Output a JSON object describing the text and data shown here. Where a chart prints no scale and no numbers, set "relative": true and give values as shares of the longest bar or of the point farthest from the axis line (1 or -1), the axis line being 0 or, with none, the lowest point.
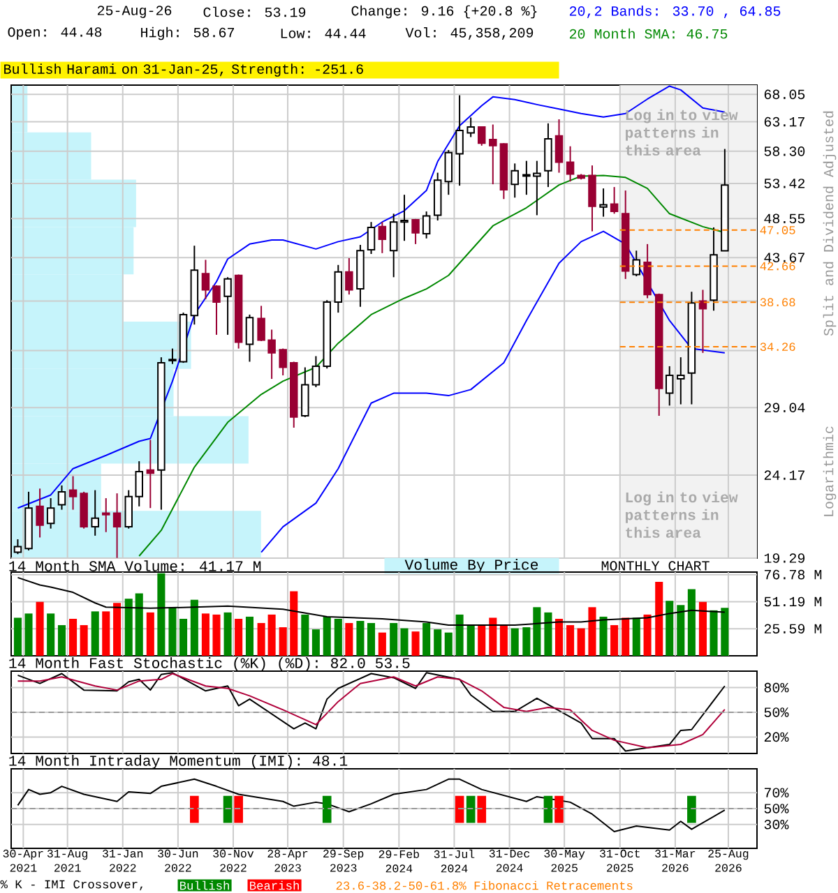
{
  "chart_data": [
    {
      "type": "candlestick",
      "subtitle": "Bullish Harami on 31-Jan-25, Strength: -251.6",
      "ylabel": "Split and Dividend Adjusted",
      "annotations": [
        "25-Aug-26",
        "Close: 53.19",
        "Change: 9.16 {+20.8 %}",
        "Open: 44.48",
        "High: 58.67",
        "Low: 44.44",
        "Vol: 45,358,209",
        "Log in to view patterns in this area",
        "Log in to view patterns in this area",
        "MONTHLY CHART",
        "Logarithmic",
        "Volume By Price"
      ],
      "x": [
        "2021-04-15",
        "2021-05-15",
        "2021-06-15",
        "2021-07-15",
        "2021-08-15",
        "2021-09-15",
        "2021-10-15",
        "2021-11-15",
        "2021-12-15",
        "2022-01-15",
        "2022-02-15",
        "2022-03-15",
        "2022-04-15",
        "2022-05-15",
        "2022-06-15",
        "2022-07-15",
        "2022-08-15",
        "2022-09-15",
        "2022-10-15",
        "2022-11-15",
        "2022-12-15",
        "2023-01-15",
        "2023-02-15",
        "2023-03-15",
        "2023-04-15",
        "2023-05-15",
        "2023-06-15",
        "2023-07-15",
        "2023-08-15",
        "2023-09-15",
        "2023-10-15",
        "2023-11-15",
        "2023-12-15",
        "2024-01-15",
        "2024-02-15",
        "2024-03-15",
        "2024-04-15",
        "2024-05-15",
        "2024-06-15",
        "2024-07-15",
        "2024-08-15",
        "2024-09-15",
        "2024-10-15",
        "2024-11-15",
        "2024-12-15",
        "2025-01-15",
        "2025-02-15",
        "2025-03-15",
        "2025-04-15",
        "2025-05-15",
        "2025-06-15",
        "2025-07-15",
        "2025-08-15",
        "2025-09-15",
        "2025-10-15",
        "2025-11-15",
        "2025-12-15",
        "2026-01-15",
        "2026-02-15",
        "2026-03-15",
        "2026-04-15",
        "2026-05-15",
        "2026-06-15",
        "2026-07-15",
        "2026-08-15"
      ],
      "ohlc": [
        [
          19.6,
          20.3,
          19.5,
          19.9
        ],
        [
          19.8,
          23.1,
          19.7,
          22.1
        ],
        [
          22.2,
          23.3,
          20.4,
          21.1
        ],
        [
          21.2,
          22.7,
          20.9,
          22.1
        ],
        [
          22.3,
          23.5,
          22.0,
          23.1
        ],
        [
          23.2,
          24.1,
          22.0,
          22.8
        ],
        [
          23.0,
          23.1,
          20.9,
          21.0
        ],
        [
          21.0,
          23.2,
          20.5,
          21.5
        ],
        [
          21.8,
          22.7,
          20.7,
          21.7
        ],
        [
          21.8,
          23.0,
          19.3,
          21.0
        ],
        [
          21.0,
          23.2,
          20.9,
          22.8
        ],
        [
          22.8,
          25.1,
          22.2,
          24.4
        ],
        [
          24.5,
          26.6,
          22.1,
          24.3
        ],
        [
          24.5,
          33.3,
          22.0,
          32.8
        ],
        [
          33.0,
          34.1,
          32.7,
          33.1
        ],
        [
          32.9,
          37.6,
          32.8,
          37.4
        ],
        [
          37.3,
          45.1,
          36.4,
          42.2
        ],
        [
          41.8,
          43.4,
          39.0,
          40.0
        ],
        [
          40.4,
          40.5,
          35.4,
          38.7
        ],
        [
          39.3,
          41.4,
          35.4,
          41.2
        ],
        [
          41.6,
          41.7,
          34.1,
          34.7
        ],
        [
          34.5,
          37.4,
          32.9,
          37.1
        ],
        [
          37.0,
          38.3,
          34.8,
          34.9
        ],
        [
          34.9,
          35.9,
          31.4,
          33.7
        ],
        [
          34.0,
          34.1,
          31.7,
          32.4
        ],
        [
          32.8,
          32.9,
          27.5,
          28.3
        ],
        [
          28.4,
          32.4,
          28.3,
          30.9
        ],
        [
          30.9,
          33.4,
          30.7,
          32.5
        ],
        [
          32.5,
          38.9,
          32.3,
          38.7
        ],
        [
          38.7,
          42.8,
          37.6,
          42.0
        ],
        [
          42.0,
          43.6,
          39.5,
          40.0
        ],
        [
          40.1,
          45.2,
          38.2,
          44.5
        ],
        [
          44.6,
          48.1,
          44.1,
          47.4
        ],
        [
          47.5,
          48.1,
          44.2,
          45.9
        ],
        [
          44.5,
          49.2,
          41.4,
          48.1
        ],
        [
          48.1,
          51.8,
          45.7,
          48.3
        ],
        [
          48.4,
          48.5,
          45.3,
          46.7
        ],
        [
          46.6,
          49.5,
          46.0,
          48.9
        ],
        [
          49.0,
          55.0,
          48.3,
          53.9
        ],
        [
          53.7,
          58.5,
          51.8,
          58.1
        ],
        [
          57.9,
          67.9,
          53.1,
          61.7
        ],
        [
          61.3,
          63.9,
          60.6,
          62.3
        ],
        [
          62.3,
          62.4,
          59.2,
          59.6
        ],
        [
          60.2,
          62.7,
          53.3,
          59.2
        ],
        [
          59.5,
          59.6,
          51.2,
          52.5
        ],
        [
          53.3,
          56.4,
          51.4,
          55.3
        ],
        [
          54.5,
          56.8,
          51.8,
          54.7
        ],
        [
          54.5,
          56.8,
          49.0,
          54.9
        ],
        [
          55.3,
          62.9,
          52.9,
          60.3
        ],
        [
          60.8,
          63.6,
          55.0,
          56.6
        ],
        [
          56.6,
          59.1,
          53.7,
          54.8
        ],
        [
          54.6,
          54.8,
          54.0,
          54.2
        ],
        [
          54.6,
          56.1,
          46.9,
          50.2
        ],
        [
          50.1,
          52.7,
          48.8,
          50.4
        ],
        [
          50.5,
          52.9,
          49.2,
          49.5
        ],
        [
          49.2,
          52.4,
          41.2,
          42.1
        ],
        [
          41.7,
          44.5,
          41.5,
          43.4
        ],
        [
          43.1,
          45.3,
          39.1,
          39.5
        ],
        [
          39.5,
          39.6,
          28.4,
          30.6
        ],
        [
          30.2,
          32.5,
          29.2,
          31.7
        ],
        [
          31.4,
          33.3,
          29.3,
          31.7
        ],
        [
          31.9,
          39.8,
          29.3,
          38.6
        ],
        [
          38.8,
          40.0,
          33.7,
          38.0
        ],
        [
          38.9,
          47.4,
          37.8,
          44.0
        ],
        [
          44.48,
          58.67,
          44.44,
          53.19
        ]
      ],
      "colors": [
        "#ffffff",
        "#ffffff",
        "#990033",
        "#ffffff",
        "#ffffff",
        "#990033",
        "#990033",
        "#ffffff",
        "#990033",
        "#990033",
        "#ffffff",
        "#ffffff",
        "#990033",
        "#ffffff",
        "#ffffff",
        "#ffffff",
        "#ffffff",
        "#990033",
        "#990033",
        "#ffffff",
        "#990033",
        "#ffffff",
        "#990033",
        "#990033",
        "#990033",
        "#990033",
        "#ffffff",
        "#ffffff",
        "#ffffff",
        "#ffffff",
        "#990033",
        "#ffffff",
        "#ffffff",
        "#990033",
        "#ffffff",
        "#ffffff",
        "#990033",
        "#ffffff",
        "#ffffff",
        "#ffffff",
        "#ffffff",
        "#ffffff",
        "#990033",
        "#990033",
        "#990033",
        "#ffffff",
        "#ffffff",
        "#ffffff",
        "#ffffff",
        "#990033",
        "#990033",
        "#990033",
        "#990033",
        "#ffffff",
        "#990033",
        "#990033",
        "#ffffff",
        "#990033",
        "#990033",
        "#ffffff",
        "#ffffff",
        "#ffffff",
        "#990033",
        "#ffffff",
        "#ffffff"
      ],
      "series": [
        {
          "type": "line",
          "name": "20,2 Bands: 33.70 , 64.85",
          "color": "#0000ff",
          "x": [
            "2021-04-15",
            "2021-07-15",
            "2021-09-15",
            "2021-12-15",
            "2022-03-15",
            "2022-04-15",
            "2022-05-15",
            "2022-06-15",
            "2022-08-15",
            "2022-10-15",
            "2022-11-15",
            "2023-01-15",
            "2023-03-15",
            "2023-04-15",
            "2023-07-15",
            "2023-09-15",
            "2023-11-15",
            "2024-01-15",
            "2024-03-15",
            "2024-05-15",
            "2024-06-15",
            "2024-08-15",
            "2024-10-15",
            "2024-11-15",
            "2025-01-15",
            "2025-03-15",
            "2025-05-15",
            "2025-07-15",
            "2025-09-15",
            "2025-11-15",
            "2026-01-15",
            "2026-03-15",
            "2026-04-15",
            "2026-06-15",
            "2026-08-15"
          ],
          "values": [
            22.1,
            22.9,
            24.6,
            25.5,
            26.5,
            26.7,
            null,
            31.2,
            37.4,
            40.9,
            43.5,
            45.3,
            45.8,
            45.8,
            44.7,
            45.6,
            46.2,
            48.1,
            49.6,
            52.4,
            56.7,
            62.5,
            66.0,
            67.6,
            67.1,
            66.2,
            65.4,
            64.6,
            64.0,
            64.6,
            67.2,
            69.6,
            68.9,
            65.6,
            64.85
          ]
        },
        {
          "type": "line",
          "color": "#0000ff",
          "x": [
            "2023-02-15",
            "2023-04-15",
            "2023-07-15",
            "2023-09-15",
            "2023-12-15",
            "2024-02-15",
            "2024-05-15",
            "2024-07-15",
            "2024-09-15",
            "2024-12-15",
            "2025-02-15",
            "2025-05-15",
            "2025-07-15",
            "2025-09-15",
            "2025-11-15",
            "2026-01-15",
            "2026-03-15",
            "2026-05-15",
            "2026-08-15"
          ],
          "values": [
            19.6,
            21.0,
            22.4,
            24.6,
            29.4,
            30.2,
            30.2,
            30.0,
            30.5,
            32.8,
            36.8,
            43.0,
            45.6,
            46.9,
            45.3,
            null,
            36.8,
            34.1,
            33.7
          ]
        },
        {
          "type": "line",
          "name": "20 Month SMA: 46.75",
          "color": "#008800",
          "x": [
            "2022-03-15",
            "2022-05-15",
            "2022-08-15",
            "2022-11-15",
            "2023-02-15",
            "2023-04-15",
            "2023-07-15",
            "2023-09-15",
            "2023-12-15",
            "2024-03-15",
            "2024-05-15",
            "2024-07-15",
            "2024-11-15",
            "2025-02-15",
            "2025-05-15",
            "2025-07-15",
            "2025-09-15",
            "2025-11-15",
            "2026-01-15",
            "2026-03-15",
            "2026-06-15",
            "2026-08-15"
          ],
          "values": [
            19.4,
            20.8,
            24.7,
            27.9,
            30.1,
            31.2,
            32.4,
            34.6,
            37.4,
            39.1,
            40.1,
            41.6,
            47.6,
            50.0,
            53.2,
            54.5,
            54.6,
            54.3,
            52.7,
            49.2,
            47.5,
            46.75
          ]
        }
      ],
      "legend": "top right",
      "log": "y",
      "grid": true,
      "tick_labels": "y",
      "xlim": [
        "2021-03-28",
        "2026-11-12"
      ],
      "ylim": [
        19.29,
        69.8
      ],
      "xticks": [
        {
          "value": "2021-04-30",
          "label": null
        },
        {
          "value": "2021-08-31",
          "label": null
        },
        {
          "value": "2022-01-31",
          "label": null
        },
        {
          "value": "2022-06-30",
          "label": null
        },
        {
          "value": "2022-11-30",
          "label": null
        },
        {
          "value": "2023-04-28",
          "label": null
        },
        {
          "value": "2023-09-29",
          "label": null
        },
        {
          "value": "2024-02-29",
          "label": null
        },
        {
          "value": "2024-07-31",
          "label": null
        },
        {
          "value": "2024-12-31",
          "label": null
        },
        {
          "value": "2025-05-30",
          "label": null
        },
        {
          "value": "2025-10-31",
          "label": null
        },
        {
          "value": "2026-03-31",
          "label": null
        },
        {
          "value": "2026-08-25",
          "label": null
        }
      ],
      "yticks": [
        19.29,
        24.17,
        29.04,
        {
          "value": 33.92,
          "label": null
        },
        {
          "value": 38.8,
          "label": null
        },
        43.67,
        48.55,
        53.42,
        {
          "value": 58.3,
          "label": "58.30"
        },
        63.17,
        68.05
      ],
      "ref_lines": [
        {
          "axis": "y",
          "value": 47.05,
          "label": "47.05",
          "color": "#ff8000",
          "line_style": "dashed"
        },
        {
          "axis": "y",
          "value": 42.66,
          "label": "42.66",
          "color": "#ff8000",
          "line_style": "dashed"
        },
        {
          "axis": "y",
          "value": 38.68,
          "label": "38.68",
          "color": "#ff8000",
          "line_style": "dashed"
        },
        {
          "axis": "y",
          "value": 34.26,
          "label": "34.26",
          "color": "#ff8000",
          "line_style": "dashed"
        }
      ],
      "bands": [
        {
          "axis": "x",
          "from": "2025-10-31",
          "to": "2026-11-12",
          "color": "#f2f2f2"
        }
      ]
    },
    {
      "type": "bar",
      "orientation": "horizontal",
      "relative": true,
      "color": "#c6f4fb",
      "categories": [
        null,
        null,
        null,
        null,
        null,
        null,
        null,
        null,
        null,
        null
      ],
      "values": [
        0.065,
        0.32,
        0.5,
        0.49,
        0.45,
        0.72,
        0.65,
        0.95,
        0.36,
        1
      ]
    },
    {
      "type": "bar",
      "title": "14 Month SMA Volume: 41.17 M",
      "x": [
        "2021-04-15",
        "2021-05-15",
        "2021-06-15",
        "2021-07-15",
        "2021-08-15",
        "2021-09-15",
        "2021-10-15",
        "2021-11-15",
        "2021-12-15",
        "2022-01-15",
        "2022-02-15",
        "2022-03-15",
        "2022-04-15",
        "2022-05-15",
        "2022-06-15",
        "2022-07-15",
        "2022-08-15",
        "2022-09-15",
        "2022-10-15",
        "2022-11-15",
        "2022-12-15",
        "2023-01-15",
        "2023-02-15",
        "2023-03-15",
        "2023-04-15",
        "2023-05-15",
        "2023-06-15",
        "2023-07-15",
        "2023-08-15",
        "2023-09-15",
        "2023-10-15",
        "2023-11-15",
        "2023-12-15",
        "2024-01-15",
        "2024-02-15",
        "2024-03-15",
        "2024-04-15",
        "2024-05-15",
        "2024-06-15",
        "2024-07-15",
        "2024-08-15",
        "2024-09-15",
        "2024-10-15",
        "2024-11-15",
        "2024-12-15",
        "2025-01-15",
        "2025-02-15",
        "2025-03-15",
        "2025-04-15",
        "2025-05-15",
        "2025-06-15",
        "2025-07-15",
        "2025-08-15",
        "2025-09-15",
        "2025-10-15",
        "2025-11-15",
        "2025-12-15",
        "2026-01-15",
        "2026-02-15",
        "2026-03-15",
        "2026-04-15",
        "2026-05-15",
        "2026-06-15",
        "2026-07-15",
        "2026-08-15"
      ],
      "values": [
        36,
        40,
        51,
        40,
        29,
        35,
        29,
        42,
        42,
        50,
        54,
        59,
        41,
        78,
        46,
        35,
        53,
        40,
        39,
        41,
        35,
        37,
        31,
        39,
        27,
        61,
        39,
        25,
        37,
        35,
        31,
        33,
        31,
        22,
        31,
        26,
        23,
        31,
        25,
        22,
        39,
        29,
        29,
        36,
        29,
        26,
        27,
        46,
        41,
        35,
        29,
        26,
        46,
        37,
        29,
        36,
        36,
        39,
        70,
        52,
        48,
        63,
        51,
        43,
        45.36
      ],
      "colors": [
        "#008800",
        "#008800",
        "#ff0000",
        "#008800",
        "#008800",
        "#ff0000",
        "#ff0000",
        "#008800",
        "#ff0000",
        "#ff0000",
        "#008800",
        "#008800",
        "#ff0000",
        "#008800",
        "#008800",
        "#008800",
        "#008800",
        "#ff0000",
        "#ff0000",
        "#008800",
        "#ff0000",
        "#008800",
        "#ff0000",
        "#ff0000",
        "#ff0000",
        "#ff0000",
        "#008800",
        "#008800",
        "#008800",
        "#008800",
        "#ff0000",
        "#008800",
        "#008800",
        "#ff0000",
        "#008800",
        "#008800",
        "#ff0000",
        "#008800",
        "#008800",
        "#008800",
        "#008800",
        "#008800",
        "#ff0000",
        "#ff0000",
        "#ff0000",
        "#008800",
        "#008800",
        "#008800",
        "#008800",
        "#ff0000",
        "#ff0000",
        "#ff0000",
        "#ff0000",
        "#008800",
        "#ff0000",
        "#ff0000",
        "#008800",
        "#ff0000",
        "#ff0000",
        "#008800",
        "#008800",
        "#008800",
        "#ff0000",
        "#008800",
        "#008800"
      ],
      "series": [
        {
          "type": "line",
          "color": "#000000",
          "x": [
            "2021-04-15",
            "2021-06-15",
            "2021-07-15",
            "2021-09-15",
            "2021-11-15",
            "2021-12-15",
            "2022-04-15",
            "2022-08-15",
            "2022-11-15",
            "2023-04-15",
            "2023-08-15",
            "2024-01-15",
            "2024-05-15",
            "2024-07-15",
            "2025-01-15",
            "2025-05-15",
            "2025-07-15",
            "2025-09-15",
            "2026-01-15",
            "2026-03-15",
            "2026-05-15",
            "2026-08-15"
          ],
          "values": [
            74,
            67,
            65,
            60,
            50,
            46,
            45,
            46,
            47,
            44,
            37,
            35,
            32,
            29,
            29,
            32,
            32,
            34,
            36,
            40,
            43,
            41.17
          ]
        }
      ],
      "grid": true,
      "tick_labels": "y",
      "xlim": [
        "2021-03-28",
        "2026-11-12"
      ],
      "ylim": [
        0,
        79.2
      ],
      "xticks": [
        {
          "value": "2021-04-30",
          "label": null
        },
        {
          "value": "2021-08-31",
          "label": null
        },
        {
          "value": "2022-01-31",
          "label": null
        },
        {
          "value": "2022-06-30",
          "label": null
        },
        {
          "value": "2022-11-30",
          "label": null
        },
        {
          "value": "2023-04-28",
          "label": null
        },
        {
          "value": "2023-09-29",
          "label": null
        },
        {
          "value": "2024-02-29",
          "label": null
        },
        {
          "value": "2024-07-31",
          "label": null
        },
        {
          "value": "2024-12-31",
          "label": null
        },
        {
          "value": "2025-05-30",
          "label": null
        },
        {
          "value": "2025-10-31",
          "label": null
        },
        {
          "value": "2026-03-31",
          "label": null
        },
        {
          "value": "2026-08-25",
          "label": null
        }
      ],
      "yticks": [
        {
          "value": 25.59,
          "label": "25.59 M"
        },
        {
          "value": 51.19,
          "label": "51.19 M"
        },
        {
          "value": 76.78,
          "label": "76.78 M"
        }
      ]
    },
    {
      "type": "line",
      "title": "14 Month Fast Stochastic (%K) (%D): 82.0 53.5",
      "series": [
        {
          "color": "#000000",
          "x": [
            "2021-04-15",
            "2021-06-15",
            "2021-08-15",
            "2021-10-15",
            "2022-01-15",
            "2022-02-15",
            "2022-03-15",
            "2022-04-15",
            "2022-05-15",
            "2022-06-15",
            "2022-09-15",
            "2022-11-15",
            "2022-12-15",
            "2023-01-15",
            "2023-05-15",
            "2023-06-15",
            "2023-07-15",
            "2023-08-15",
            "2023-09-15",
            "2023-12-15",
            "2024-02-15",
            "2024-04-15",
            "2024-05-15",
            "2024-08-15",
            "2024-09-15",
            "2024-11-15",
            "2025-01-15",
            "2025-03-15",
            "2025-07-15",
            "2025-08-15",
            "2025-10-15",
            "2025-11-15",
            "2026-01-15",
            "2026-03-15",
            "2026-04-15",
            "2026-05-15",
            "2026-08-15"
          ],
          "values": [
            95,
            85,
            97,
            77,
            76,
            87,
            90,
            77,
            96,
            98,
            76,
            82,
            58,
            66,
            30,
            37,
            30,
            66,
            79,
            97,
            92,
            79,
            98,
            90,
            71,
            51,
            51,
            67,
            37,
            18,
            18,
            3,
            7,
            11,
            28,
            29,
            82.0
          ]
        },
        {
          "color": "#b0003a",
          "x": [
            "2021-04-15",
            "2021-06-15",
            "2021-08-15",
            "2021-11-15",
            "2022-01-15",
            "2022-03-15",
            "2022-05-15",
            "2022-06-15",
            "2022-09-15",
            "2022-11-15",
            "2023-01-15",
            "2023-04-15",
            "2023-07-15",
            "2023-09-15",
            "2023-11-15",
            "2024-02-15",
            "2024-04-15",
            "2024-06-15",
            "2024-08-15",
            "2024-10-15",
            "2024-12-15",
            "2025-02-15",
            "2025-04-15",
            "2025-06-15",
            "2025-08-15",
            "2025-10-15",
            "2026-01-15",
            "2026-04-15",
            "2026-06-15",
            "2026-08-15"
          ],
          "values": [
            88,
            88,
            93,
            82,
            77,
            88,
            90,
            97,
            82,
            79,
            70,
            53,
            35,
            63,
            85,
            93,
            82,
            93,
            90,
            76,
            56,
            51,
            56,
            53,
            28,
            16,
            7,
            11,
            23,
            53.5
          ]
        }
      ],
      "grid": true,
      "tick_labels": "y",
      "xlim": [
        "2021-03-28",
        "2026-11-12"
      ],
      "ylim": [
        0,
        100
      ],
      "xticks": [
        {
          "value": "2021-04-30",
          "label": null
        },
        {
          "value": "2021-08-31",
          "label": null
        },
        {
          "value": "2022-01-31",
          "label": null
        },
        {
          "value": "2022-06-30",
          "label": null
        },
        {
          "value": "2022-11-30",
          "label": null
        },
        {
          "value": "2023-04-28",
          "label": null
        },
        {
          "value": "2023-09-29",
          "label": null
        },
        {
          "value": "2024-02-29",
          "label": null
        },
        {
          "value": "2024-07-31",
          "label": null
        },
        {
          "value": "2024-12-31",
          "label": null
        },
        {
          "value": "2025-05-30",
          "label": null
        },
        {
          "value": "2025-10-31",
          "label": null
        },
        {
          "value": "2026-03-31",
          "label": null
        },
        {
          "value": "2026-08-25",
          "label": null
        }
      ],
      "yticks": [
        {
          "value": 20,
          "label": "20%"
        },
        {
          "value": 50,
          "label": "50%"
        },
        {
          "value": 80,
          "label": "80%"
        }
      ],
      "ref_lines": [
        {
          "axis": "y",
          "value": 50,
          "color": "#999999",
          "line_style": "dashed"
        }
      ]
    },
    {
      "type": "line",
      "title": "14 Month Intraday Momentum (IMI): 48.1",
      "legend": "bottom",
      "legend_title": "% K - IMI Crossover,",
      "annotations": [
        "23.6-38.2-50-61.8% Fibonacci Retracements"
      ],
      "series": [
        {
          "color": "#000000",
          "x": [
            "2021-04-15",
            "2021-05-15",
            "2021-06-15",
            "2021-07-15",
            "2021-08-15",
            "2021-10-15",
            "2022-01-15",
            "2022-02-15",
            "2022-04-15",
            "2022-05-15",
            "2022-08-15",
            "2022-10-15",
            "2022-12-15",
            "2023-04-15",
            "2023-05-15",
            "2023-07-15",
            "2023-08-15",
            "2023-10-15",
            "2023-12-15",
            "2024-02-15",
            "2024-05-15",
            "2024-07-15",
            "2024-08-15",
            "2024-10-15",
            "2025-02-15",
            "2025-03-15",
            "2025-06-15",
            "2025-08-15",
            "2025-10-15",
            "2025-12-15",
            "2026-03-15",
            "2026-04-15",
            "2026-05-15",
            "2026-08-15"
          ],
          "values": [
            54,
            74,
            68,
            70,
            78,
            68,
            59,
            71,
            69,
            78,
            87,
            78,
            68,
            59,
            53,
            58,
            56,
            46,
            56,
            68,
            74,
            87,
            87,
            74,
            59,
            65,
            58,
            43,
            21,
            28,
            23,
            34,
            24,
            48.1
          ]
        },
        {
          "type": "bar",
          "name": "Bullish",
          "color": "#008800",
          "x": [
            "2022-11-15",
            "2023-08-15",
            "2024-09-15",
            "2025-04-15",
            "2026-05-15"
          ],
          "base": [
            32,
            32,
            32,
            32,
            32
          ],
          "values": [
            34,
            34,
            34,
            34,
            34
          ]
        },
        {
          "type": "bar",
          "name": "Bearish",
          "color": "#ff0000",
          "x": [
            "2022-08-15",
            "2022-12-15",
            "2024-08-15",
            "2024-10-15",
            "2025-05-15"
          ],
          "base": [
            32,
            32,
            32,
            32,
            32
          ],
          "values": [
            34,
            34,
            34,
            34,
            34
          ]
        }
      ],
      "grid": true,
      "xlim": [
        "2021-03-28",
        "2026-11-12"
      ],
      "ylim": [
        0,
        100
      ],
      "xticks": [
        {
          "value": "2021-04-30",
          "label": "30-Apr 2021"
        },
        {
          "value": "2021-08-31",
          "label": "31-Aug 2021"
        },
        {
          "value": "2022-01-31",
          "label": "31-Jan 2022"
        },
        {
          "value": "2022-06-30",
          "label": "30-Jun 2022"
        },
        {
          "value": "2022-11-30",
          "label": "30-Nov 2022"
        },
        {
          "value": "2023-04-28",
          "label": "28-Apr 2023"
        },
        {
          "value": "2023-09-29",
          "label": "29-Sep 2023"
        },
        {
          "value": "2024-02-29",
          "label": "29-Feb 2024"
        },
        {
          "value": "2024-07-31",
          "label": "31-Jul 2024"
        },
        {
          "value": "2024-12-31",
          "label": "31-Dec 2024"
        },
        {
          "value": "2025-05-30",
          "label": "30-May 2025"
        },
        {
          "value": "2025-10-31",
          "label": "31-Oct 2025"
        },
        {
          "value": "2026-03-31",
          "label": "31-Mar 2026"
        },
        {
          "value": "2026-08-25",
          "label": "25-Aug 2026"
        }
      ],
      "yticks": [
        {
          "value": 30,
          "label": "30%"
        },
        {
          "value": 50,
          "label": "50%"
        },
        {
          "value": 70,
          "label": "70%"
        }
      ],
      "ref_lines": [
        {
          "axis": "y",
          "value": 50,
          "color": "#999999",
          "line_style": "dashed"
        }
      ]
    }
  ]
}
